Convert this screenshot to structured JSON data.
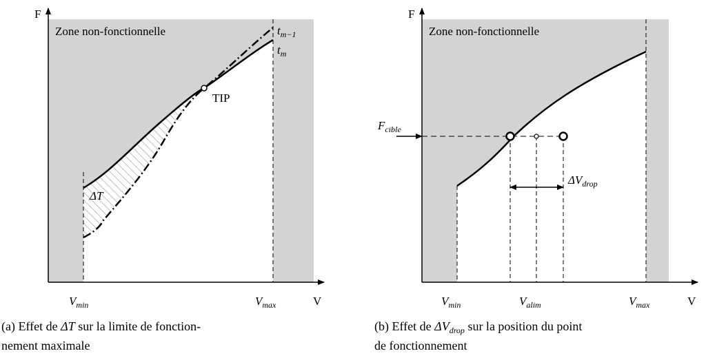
{
  "figure_a": {
    "y_axis_label": "F",
    "x_axis_label": "V",
    "zone_label": "Zone non-fonctionnelle",
    "curve_prev_label": {
      "base": "t",
      "sub": "m−1"
    },
    "curve_label": {
      "base": "t",
      "sub": "m"
    },
    "tip_label": "TIP",
    "delta_label": "ΔT",
    "vmin_label": {
      "base": "V",
      "sub": "min"
    },
    "vmax_label": {
      "base": "V",
      "sub": "max"
    },
    "caption": {
      "line1": [
        "(a) Effet de ",
        "ΔT",
        " sur la limite de fonction-"
      ],
      "line2": "nement maximale"
    }
  },
  "figure_b": {
    "y_axis_label": "F",
    "x_axis_label": "V",
    "zone_label": "Zone non-fonctionnelle",
    "target_label": {
      "base": "F",
      "sub": "cible"
    },
    "drop_label": {
      "base": "ΔV",
      "sub": "drop"
    },
    "vmin_label": {
      "base": "V",
      "sub": "min"
    },
    "valim_label": {
      "base": "V",
      "sub": "alim"
    },
    "vmax_label": {
      "base": "V",
      "sub": "max"
    },
    "caption": {
      "line1": [
        "(b) Effet de ",
        "ΔV",
        "drop",
        " sur la position du point"
      ],
      "line2": "de fonctionnement"
    }
  }
}
